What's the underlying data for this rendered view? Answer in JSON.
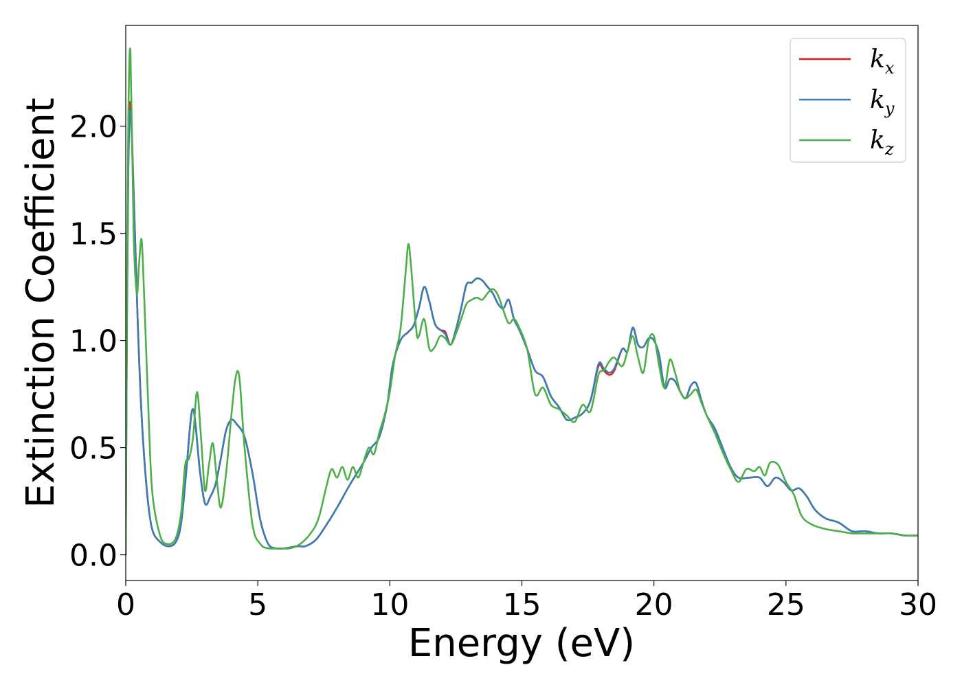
{
  "chart_data": {
    "type": "line",
    "xlabel": "Energy (eV)",
    "ylabel": "Extinction Coefficient",
    "xlim": [
      0,
      30
    ],
    "ylim": [
      -0.12,
      2.47
    ],
    "xticks": [
      0,
      5,
      10,
      15,
      20,
      25,
      30
    ],
    "xtick_labels": [
      "0",
      "5",
      "10",
      "15",
      "20",
      "25",
      "30"
    ],
    "yticks": [
      0.0,
      0.5,
      1.0,
      1.5,
      2.0
    ],
    "ytick_labels": [
      "0.0",
      "0.5",
      "1.0",
      "1.5",
      "2.0"
    ],
    "grid": false,
    "legend_position": "top-right",
    "series": [
      {
        "name": "k",
        "subscript": "x",
        "color": "#e41a1c",
        "x": [
          0,
          0.05,
          0.1,
          0.18,
          0.3,
          0.45,
          0.6,
          0.8,
          1.0,
          1.3,
          1.6,
          1.9,
          2.1,
          2.3,
          2.45,
          2.55,
          2.65,
          2.8,
          3.0,
          3.2,
          3.4,
          3.6,
          3.8,
          4.0,
          4.2,
          4.5,
          4.8,
          5.1,
          5.4,
          5.7,
          6.0,
          6.5,
          6.8,
          7.2,
          7.6,
          8.0,
          8.5,
          9.0,
          9.3,
          9.6,
          9.9,
          10.1,
          10.4,
          10.7,
          10.9,
          11.1,
          11.3,
          11.5,
          11.7,
          11.9,
          12.1,
          12.3,
          12.5,
          12.7,
          12.9,
          13.1,
          13.3,
          13.5,
          13.7,
          13.9,
          14.1,
          14.3,
          14.5,
          14.7,
          14.9,
          15.2,
          15.5,
          15.8,
          16.1,
          16.4,
          16.7,
          17.0,
          17.3,
          17.6,
          17.9,
          18.1,
          18.3,
          18.5,
          18.8,
          19.0,
          19.2,
          19.4,
          19.6,
          19.8,
          20.0,
          20.2,
          20.4,
          20.6,
          20.8,
          21.0,
          21.2,
          21.4,
          21.6,
          21.8,
          22.0,
          22.3,
          22.6,
          22.9,
          23.2,
          23.6,
          24.0,
          24.3,
          24.6,
          24.9,
          25.2,
          25.5,
          25.8,
          26.1,
          26.5,
          27.0,
          27.5,
          28.0,
          28.5,
          29.0,
          29.5,
          30.0
        ],
        "values": [
          0.0,
          1.2,
          1.85,
          2.11,
          1.7,
          1.1,
          0.65,
          0.3,
          0.12,
          0.06,
          0.04,
          0.06,
          0.15,
          0.4,
          0.62,
          0.68,
          0.6,
          0.4,
          0.24,
          0.27,
          0.33,
          0.45,
          0.58,
          0.63,
          0.61,
          0.55,
          0.38,
          0.16,
          0.05,
          0.03,
          0.03,
          0.04,
          0.04,
          0.07,
          0.14,
          0.22,
          0.33,
          0.43,
          0.5,
          0.55,
          0.7,
          0.88,
          1.0,
          1.04,
          1.07,
          1.15,
          1.25,
          1.18,
          1.08,
          1.05,
          1.04,
          0.98,
          1.05,
          1.15,
          1.26,
          1.27,
          1.29,
          1.28,
          1.25,
          1.22,
          1.17,
          1.15,
          1.19,
          1.1,
          1.05,
          0.96,
          0.86,
          0.83,
          0.74,
          0.69,
          0.63,
          0.64,
          0.66,
          0.72,
          0.88,
          0.86,
          0.84,
          0.86,
          0.96,
          0.95,
          1.06,
          0.98,
          0.97,
          1.01,
          1.0,
          0.93,
          0.78,
          0.82,
          0.81,
          0.76,
          0.73,
          0.79,
          0.8,
          0.72,
          0.65,
          0.59,
          0.5,
          0.41,
          0.36,
          0.36,
          0.36,
          0.32,
          0.36,
          0.34,
          0.3,
          0.31,
          0.27,
          0.21,
          0.17,
          0.15,
          0.11,
          0.11,
          0.1,
          0.1,
          0.09,
          0.09
        ]
      },
      {
        "name": "k",
        "subscript": "y",
        "color": "#377eb8",
        "x": [
          0,
          0.05,
          0.1,
          0.18,
          0.3,
          0.45,
          0.6,
          0.8,
          1.0,
          1.3,
          1.6,
          1.9,
          2.1,
          2.3,
          2.45,
          2.55,
          2.65,
          2.8,
          3.0,
          3.2,
          3.4,
          3.6,
          3.8,
          4.0,
          4.2,
          4.5,
          4.8,
          5.1,
          5.4,
          5.7,
          6.0,
          6.5,
          6.8,
          7.2,
          7.6,
          8.0,
          8.5,
          9.0,
          9.3,
          9.6,
          9.9,
          10.1,
          10.4,
          10.7,
          10.9,
          11.1,
          11.3,
          11.5,
          11.7,
          11.9,
          12.1,
          12.3,
          12.5,
          12.7,
          12.9,
          13.1,
          13.3,
          13.5,
          13.7,
          13.9,
          14.1,
          14.3,
          14.5,
          14.7,
          14.9,
          15.2,
          15.5,
          15.8,
          16.1,
          16.4,
          16.7,
          17.0,
          17.3,
          17.6,
          17.9,
          18.1,
          18.3,
          18.5,
          18.8,
          19.0,
          19.2,
          19.4,
          19.6,
          19.8,
          20.0,
          20.2,
          20.4,
          20.6,
          20.8,
          21.0,
          21.2,
          21.4,
          21.6,
          21.8,
          22.0,
          22.3,
          22.6,
          22.9,
          23.2,
          23.6,
          24.0,
          24.3,
          24.6,
          24.9,
          25.2,
          25.5,
          25.8,
          26.1,
          26.5,
          27.0,
          27.5,
          28.0,
          28.5,
          29.0,
          29.5,
          30.0
        ],
        "values": [
          0.0,
          1.15,
          1.8,
          2.07,
          1.68,
          1.1,
          0.65,
          0.3,
          0.12,
          0.06,
          0.04,
          0.06,
          0.15,
          0.4,
          0.62,
          0.68,
          0.6,
          0.4,
          0.24,
          0.27,
          0.33,
          0.45,
          0.58,
          0.63,
          0.61,
          0.55,
          0.38,
          0.16,
          0.05,
          0.03,
          0.03,
          0.04,
          0.04,
          0.07,
          0.14,
          0.22,
          0.33,
          0.43,
          0.5,
          0.55,
          0.7,
          0.88,
          1.0,
          1.04,
          1.07,
          1.15,
          1.25,
          1.18,
          1.08,
          1.05,
          1.03,
          0.98,
          1.05,
          1.15,
          1.26,
          1.27,
          1.29,
          1.28,
          1.25,
          1.22,
          1.17,
          1.15,
          1.19,
          1.1,
          1.05,
          0.96,
          0.86,
          0.83,
          0.74,
          0.69,
          0.63,
          0.64,
          0.66,
          0.72,
          0.89,
          0.87,
          0.85,
          0.87,
          0.96,
          0.95,
          1.06,
          0.98,
          0.97,
          1.01,
          1.0,
          0.93,
          0.78,
          0.82,
          0.81,
          0.76,
          0.73,
          0.79,
          0.8,
          0.72,
          0.65,
          0.59,
          0.5,
          0.41,
          0.36,
          0.36,
          0.36,
          0.32,
          0.36,
          0.34,
          0.3,
          0.31,
          0.27,
          0.21,
          0.17,
          0.15,
          0.11,
          0.11,
          0.1,
          0.1,
          0.09,
          0.09
        ]
      },
      {
        "name": "k",
        "subscript": "z",
        "color": "#4daf4a",
        "x": [
          0,
          0.05,
          0.1,
          0.18,
          0.3,
          0.42,
          0.5,
          0.6,
          0.7,
          0.85,
          1.0,
          1.3,
          1.6,
          1.9,
          2.1,
          2.25,
          2.4,
          2.55,
          2.7,
          2.85,
          3.0,
          3.15,
          3.3,
          3.45,
          3.6,
          3.8,
          4.0,
          4.15,
          4.3,
          4.5,
          4.8,
          5.1,
          5.4,
          5.8,
          6.2,
          6.6,
          7.0,
          7.3,
          7.6,
          7.8,
          8.0,
          8.2,
          8.4,
          8.6,
          8.8,
          9.0,
          9.2,
          9.4,
          9.6,
          9.8,
          10.0,
          10.2,
          10.4,
          10.6,
          10.7,
          10.8,
          11.0,
          11.1,
          11.3,
          11.5,
          11.7,
          11.9,
          12.1,
          12.3,
          12.5,
          12.7,
          12.9,
          13.1,
          13.3,
          13.5,
          13.7,
          13.9,
          14.1,
          14.3,
          14.5,
          14.7,
          14.9,
          15.2,
          15.5,
          15.8,
          16.1,
          16.4,
          16.7,
          17.0,
          17.3,
          17.6,
          17.9,
          18.1,
          18.3,
          18.5,
          18.8,
          19.0,
          19.2,
          19.4,
          19.6,
          19.8,
          20.0,
          20.2,
          20.4,
          20.6,
          20.8,
          21.0,
          21.2,
          21.4,
          21.6,
          21.8,
          22.0,
          22.3,
          22.6,
          22.9,
          23.2,
          23.5,
          23.8,
          24.0,
          24.2,
          24.4,
          24.7,
          25.0,
          25.3,
          25.6,
          26.0,
          26.5,
          27.0,
          27.5,
          28.0,
          28.5,
          29.0,
          29.5,
          30.0
        ],
        "values": [
          0.0,
          1.3,
          2.05,
          2.34,
          1.5,
          1.22,
          1.35,
          1.47,
          1.2,
          0.7,
          0.3,
          0.09,
          0.05,
          0.08,
          0.2,
          0.42,
          0.45,
          0.55,
          0.76,
          0.55,
          0.3,
          0.42,
          0.52,
          0.35,
          0.22,
          0.38,
          0.65,
          0.82,
          0.83,
          0.5,
          0.14,
          0.05,
          0.03,
          0.03,
          0.03,
          0.05,
          0.1,
          0.17,
          0.32,
          0.4,
          0.36,
          0.41,
          0.35,
          0.41,
          0.36,
          0.43,
          0.5,
          0.47,
          0.57,
          0.65,
          0.76,
          0.93,
          1.05,
          1.32,
          1.45,
          1.35,
          1.05,
          1.02,
          1.1,
          0.96,
          0.97,
          1.02,
          1.01,
          0.98,
          1.03,
          1.1,
          1.17,
          1.19,
          1.2,
          1.19,
          1.22,
          1.24,
          1.21,
          1.14,
          1.08,
          1.1,
          1.06,
          0.96,
          0.75,
          0.78,
          0.7,
          0.68,
          0.65,
          0.62,
          0.7,
          0.67,
          0.84,
          0.86,
          0.9,
          0.92,
          0.88,
          0.95,
          1.02,
          0.92,
          0.85,
          1.0,
          1.02,
          0.88,
          0.78,
          0.91,
          0.85,
          0.76,
          0.73,
          0.75,
          0.77,
          0.71,
          0.65,
          0.57,
          0.48,
          0.4,
          0.34,
          0.4,
          0.39,
          0.41,
          0.37,
          0.43,
          0.42,
          0.34,
          0.28,
          0.18,
          0.14,
          0.12,
          0.11,
          0.1,
          0.1,
          0.1,
          0.1,
          0.09,
          0.09
        ]
      }
    ]
  }
}
